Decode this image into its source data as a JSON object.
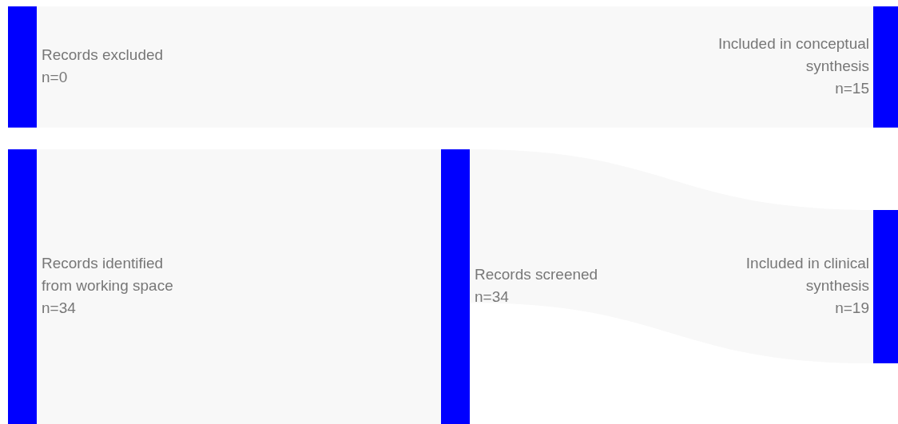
{
  "chart_data": {
    "type": "other",
    "categories": [
      "Records excluded",
      "Records identified from working space",
      "Records screened",
      "Included in conceptual synthesis",
      "Included in clinical synthesis"
    ],
    "values": [
      0,
      34,
      34,
      15,
      19
    ],
    "value_labels": [
      "n=0",
      "n=34",
      "n=34",
      "n=15",
      "n=19"
    ]
  }
}
